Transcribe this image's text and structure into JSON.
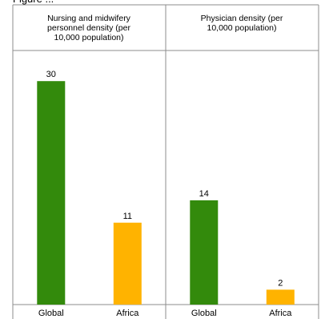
{
  "cut_text": "Figure ...",
  "chart_data": [
    {
      "type": "bar",
      "title": "Nursing and midwifery personnel density (per 10,000 population)",
      "title_lines": [
        "Nursing and midwifery",
        "personnel density (per",
        "10,000 population)"
      ],
      "categories": [
        "Global",
        "Africa"
      ],
      "values": [
        30,
        11
      ],
      "colors": [
        "#338a0c",
        "#ffb300"
      ],
      "ylim": [
        0,
        34
      ],
      "grid": false,
      "legend": "none"
    },
    {
      "type": "bar",
      "title": "Physician density (per 10,000 population)",
      "title_lines": [
        "Physician density (per",
        "10,000 population)"
      ],
      "categories": [
        "Global",
        "Africa"
      ],
      "values": [
        14,
        2
      ],
      "colors": [
        "#338a0c",
        "#ffb300"
      ],
      "ylim": [
        0,
        34
      ],
      "grid": false,
      "legend": "none"
    }
  ]
}
